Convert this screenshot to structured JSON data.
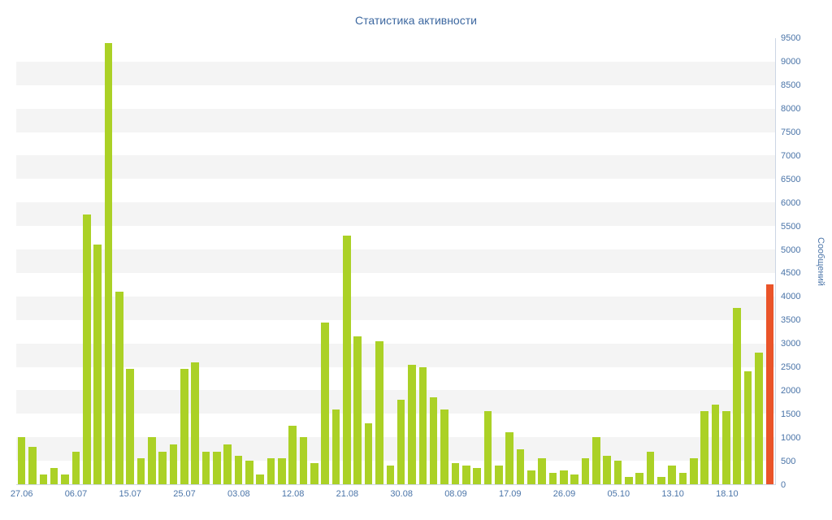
{
  "colors": {
    "bar": "#abd126",
    "bar_highlight": "#ea5429",
    "band": "#f4f4f4",
    "axis_text": "#4a74a8",
    "title_text": "#3d68a0"
  },
  "chart_data": {
    "type": "bar",
    "title": "Статистика активности",
    "ylabel": "Сообщений",
    "xlabel": "",
    "ylim": [
      0,
      9500
    ],
    "ytick_step": 500,
    "grid": "striped-bands",
    "legend": "none",
    "highlight_last": true,
    "x_ticks": [
      {
        "index": 0,
        "label": "27.06"
      },
      {
        "index": 5,
        "label": "06.07"
      },
      {
        "index": 10,
        "label": "15.07"
      },
      {
        "index": 15,
        "label": "25.07"
      },
      {
        "index": 20,
        "label": "03.08"
      },
      {
        "index": 25,
        "label": "12.08"
      },
      {
        "index": 30,
        "label": "21.08"
      },
      {
        "index": 35,
        "label": "30.08"
      },
      {
        "index": 40,
        "label": "08.09"
      },
      {
        "index": 45,
        "label": "17.09"
      },
      {
        "index": 50,
        "label": "26.09"
      },
      {
        "index": 55,
        "label": "05.10"
      },
      {
        "index": 60,
        "label": "13.10"
      },
      {
        "index": 65,
        "label": "18.10"
      }
    ],
    "values": [
      1000,
      800,
      200,
      350,
      200,
      700,
      5750,
      5100,
      9400,
      4100,
      2450,
      550,
      1000,
      700,
      850,
      2450,
      2600,
      700,
      700,
      850,
      600,
      500,
      200,
      550,
      550,
      1250,
      1000,
      450,
      3450,
      1600,
      5300,
      3150,
      1300,
      3050,
      400,
      1800,
      2550,
      2500,
      1850,
      1600,
      450,
      400,
      350,
      1550,
      400,
      1100,
      750,
      300,
      550,
      250,
      300,
      200,
      550,
      1000,
      600,
      500,
      150,
      250,
      700,
      150,
      400,
      250,
      550,
      1550,
      1700,
      1550,
      3750,
      2400,
      2800,
      4250
    ]
  }
}
